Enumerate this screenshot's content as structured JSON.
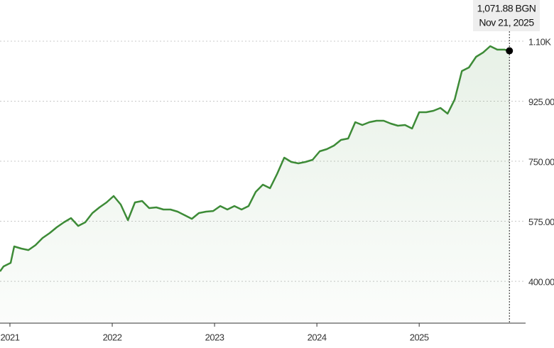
{
  "chart_data": {
    "type": "line",
    "tooltip_value": "1,071.88 BGN",
    "tooltip_date": "Nov 21, 2025",
    "x": [
      2020.903,
      2020.938,
      2021.007,
      2021.042,
      2021.111,
      2021.181,
      2021.25,
      2021.319,
      2021.389,
      2021.458,
      2021.528,
      2021.597,
      2021.667,
      2021.736,
      2021.806,
      2021.875,
      2021.944,
      2022.014,
      2022.083,
      2022.153,
      2022.222,
      2022.292,
      2022.361,
      2022.431,
      2022.5,
      2022.569,
      2022.639,
      2022.708,
      2022.778,
      2022.847,
      2022.917,
      2022.986,
      2023.056,
      2023.125,
      2023.194,
      2023.264,
      2023.333,
      2023.403,
      2023.472,
      2023.542,
      2023.611,
      2023.681,
      2023.75,
      2023.819,
      2023.889,
      2023.958,
      2024.028,
      2024.097,
      2024.167,
      2024.236,
      2024.306,
      2024.375,
      2024.444,
      2024.514,
      2024.583,
      2024.653,
      2024.722,
      2024.792,
      2024.861,
      2024.931,
      2025.0,
      2025.069,
      2025.139,
      2025.208,
      2025.278,
      2025.347,
      2025.417,
      2025.486,
      2025.556,
      2025.625,
      2025.694,
      2025.764,
      2025.833,
      2025.882
    ],
    "series": [
      {
        "color": "#3d8b37",
        "values": [
          429,
          443.5,
          453.8,
          501.5,
          495.3,
          491.1,
          505.6,
          526.3,
          540.8,
          557.4,
          571.9,
          584.3,
          561.5,
          571.9,
          598.8,
          615.4,
          629.9,
          648.5,
          623.7,
          578.1,
          629.9,
          634,
          613.3,
          615.4,
          609.2,
          609.2,
          603,
          592.6,
          582.2,
          598.8,
          603,
          605,
          619.5,
          609.2,
          619.5,
          609.2,
          619.5,
          660.9,
          681.7,
          671.3,
          712.7,
          760.4,
          747.9,
          743.8,
          747.9,
          754.1,
          779,
          785.2,
          795.6,
          812.1,
          816.3,
          863.9,
          855.6,
          863.9,
          868,
          868,
          859.8,
          853.5,
          855.6,
          845.3,
          892.9,
          892.9,
          897,
          905.3,
          888.8,
          930.2,
          1013,
          1023.4,
          1054.4,
          1066.9,
          1085.5,
          1075.2,
          1075.2,
          1071.88
        ]
      }
    ],
    "xlim": [
      2020.903,
      2026.04
    ],
    "xticks": [
      2021,
      2022,
      2023,
      2024,
      2025
    ],
    "ylim": [
      278,
      1220
    ],
    "yticks": [
      {
        "value": 400,
        "label": "400.00"
      },
      {
        "value": 575,
        "label": "575.00"
      },
      {
        "value": 750,
        "label": "750.00"
      },
      {
        "value": 925,
        "label": "925.00"
      },
      {
        "value": 1100,
        "label": "1.10K"
      }
    ],
    "grid": true
  }
}
